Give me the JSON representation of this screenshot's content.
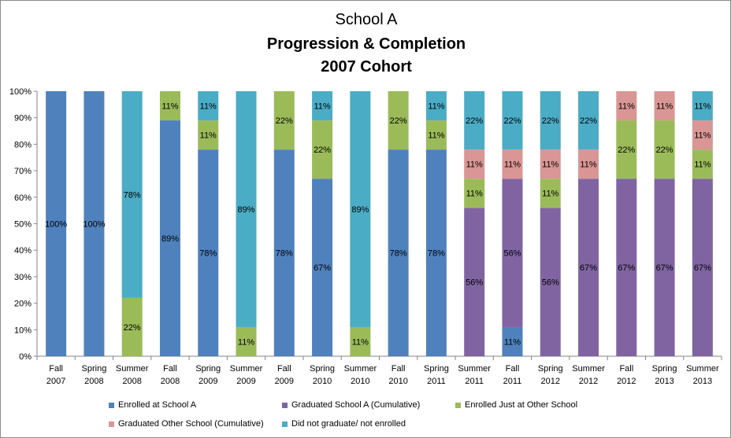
{
  "chart_data": {
    "type": "bar",
    "stacked": true,
    "title_lines": [
      "School A",
      "Progression & Completion",
      "2007 Cohort"
    ],
    "categories": [
      [
        "Fall",
        "2007"
      ],
      [
        "Spring",
        "2008"
      ],
      [
        "Summer",
        "2008"
      ],
      [
        "Fall",
        "2008"
      ],
      [
        "Spring",
        "2009"
      ],
      [
        "Summer",
        "2009"
      ],
      [
        "Fall",
        "2009"
      ],
      [
        "Spring",
        "2010"
      ],
      [
        "Summer",
        "2010"
      ],
      [
        "Fall",
        "2010"
      ],
      [
        "Spring",
        "2011"
      ],
      [
        "Summer",
        "2011"
      ],
      [
        "Fall",
        "2011"
      ],
      [
        "Spring",
        "2012"
      ],
      [
        "Summer",
        "2012"
      ],
      [
        "Fall",
        "2012"
      ],
      [
        "Spring",
        "2013"
      ],
      [
        "Summer",
        "2013"
      ]
    ],
    "ylim": [
      0,
      100
    ],
    "y_ticks": [
      0,
      10,
      20,
      30,
      40,
      50,
      60,
      70,
      80,
      90,
      100
    ],
    "y_tick_suffix": "%",
    "grid": false,
    "legend_position": "bottom",
    "series": [
      {
        "name": "Enrolled at School A",
        "color": "#4f81bd",
        "values": [
          100,
          100,
          0,
          89,
          78,
          0,
          78,
          67,
          0,
          78,
          78,
          0,
          11,
          0,
          0,
          0,
          0,
          0
        ],
        "labels": [
          "100%",
          "100%",
          "",
          "89%",
          "78%",
          "",
          "78%",
          "67%",
          "",
          "78%",
          "78%",
          "",
          "11%",
          "",
          "",
          "",
          "",
          ""
        ]
      },
      {
        "name": "Graduated School A (Cumulative)",
        "color": "#8064a2",
        "values": [
          0,
          0,
          0,
          0,
          0,
          0,
          0,
          0,
          0,
          0,
          0,
          56,
          56,
          56,
          67,
          67,
          67,
          67
        ],
        "labels": [
          "",
          "",
          "",
          "",
          "",
          "",
          "",
          "",
          "",
          "",
          "",
          "56%",
          "56%",
          "56%",
          "67%",
          "67%",
          "67%",
          "67%"
        ]
      },
      {
        "name": "Enrolled Just at Other School",
        "color": "#9bbb59",
        "values": [
          0,
          0,
          22,
          11,
          11,
          11,
          22,
          22,
          11,
          22,
          11,
          11,
          0,
          11,
          0,
          22,
          22,
          11
        ],
        "labels": [
          "",
          "",
          "22%",
          "11%",
          "11%",
          "11%",
          "22%",
          "22%",
          "11%",
          "22%",
          "11%",
          "11%",
          "",
          "11%",
          "",
          "22%",
          "22%",
          "11%"
        ]
      },
      {
        "name": "Graduated Other School (Cumulative)",
        "color": "#d99694",
        "values": [
          0,
          0,
          0,
          0,
          0,
          0,
          0,
          0,
          0,
          0,
          0,
          11,
          11,
          11,
          11,
          11,
          11,
          11
        ],
        "labels": [
          "",
          "",
          "",
          "",
          "",
          "",
          "",
          "",
          "",
          "",
          "",
          "11%",
          "11%",
          "11%",
          "11%",
          "11%",
          "11%",
          "11%"
        ]
      },
      {
        "name": "Did not graduate/ not enrolled",
        "color": "#4bacc6",
        "values": [
          0,
          0,
          78,
          0,
          11,
          89,
          0,
          11,
          89,
          0,
          11,
          22,
          22,
          22,
          22,
          0,
          0,
          11
        ],
        "labels": [
          "",
          "",
          "78%",
          "",
          "11%",
          "89%",
          "",
          "11%",
          "89%",
          "",
          "11%",
          "22%",
          "22%",
          "22%",
          "22%",
          "",
          "",
          "11%"
        ]
      }
    ]
  }
}
